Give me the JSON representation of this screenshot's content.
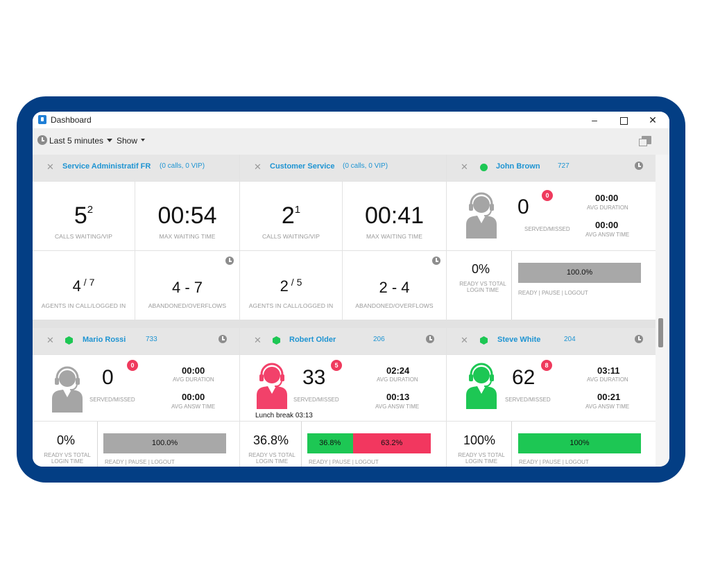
{
  "window": {
    "title": "Dashboard",
    "minimize": "–",
    "close": "✕"
  },
  "toolbar": {
    "time_filter": "Last 5 minutes",
    "show_label": "Show"
  },
  "queues": [
    {
      "name": "Service Administratif FR",
      "info": "(0 calls, 0 VIP)",
      "calls_waiting": "5",
      "calls_vip": "2",
      "calls_label": "CALLS WAITING/VIP",
      "max_wait": "00:54",
      "max_wait_label": "MAX WAITING TIME",
      "agents_in_call": "4",
      "agents_logged_in": "7",
      "agents_label": "AGENTS IN CALL/LOGGED IN",
      "abandoned": "4 - 7",
      "abandoned_label": "ABANDONED/OVERFLOWS"
    },
    {
      "name": "Customer Service",
      "info": "(0 calls, 0 VIP)",
      "calls_waiting": "2",
      "calls_vip": "1",
      "calls_label": "CALLS WAITING/VIP",
      "max_wait": "00:41",
      "max_wait_label": "MAX WAITING TIME",
      "agents_in_call": "2",
      "agents_logged_in": "5",
      "agents_label": "AGENTS IN CALL/LOGGED IN",
      "abandoned": "2 - 4",
      "abandoned_label": "ABANDONED/OVERFLOWS"
    }
  ],
  "agents": [
    {
      "name": "John Brown",
      "ext": "727",
      "status_color": "#1dc754",
      "figure_color": "#a5a5a5",
      "served": "0",
      "missed": "0",
      "served_label": "SERVED/MISSED",
      "avg_duration": "00:00",
      "avg_duration_label": "AVG DURATION",
      "avg_answ": "00:00",
      "avg_answ_label": "AVG ANSW TIME",
      "ready_pct": "0%",
      "ready_label_1": "READY VS TOTAL",
      "ready_label_2": "LOGIN TIME",
      "bar_segments": [
        {
          "label": "100.0%",
          "share": 1.0,
          "color": "#a8a8a8"
        }
      ],
      "bar_label": "READY | PAUSE | LOGOUT"
    },
    {
      "name": "Mario Rossi",
      "ext": "733",
      "status_color": "#1dc754",
      "figure_color": "#a5a5a5",
      "served": "0",
      "missed": "0",
      "served_label": "SERVED/MISSED",
      "avg_duration": "00:00",
      "avg_duration_label": "AVG DURATION",
      "avg_answ": "00:00",
      "avg_answ_label": "AVG ANSW TIME",
      "ready_pct": "0%",
      "ready_label_1": "READY VS TOTAL",
      "ready_label_2": "LOGIN TIME",
      "bar_segments": [
        {
          "label": "100.0%",
          "share": 1.0,
          "color": "#a8a8a8"
        }
      ],
      "bar_label": "READY | PAUSE | LOGOUT"
    },
    {
      "name": "Robert Older",
      "ext": "206",
      "status_color": "#1dc754",
      "figure_color": "#f2416a",
      "served": "33",
      "missed": "5",
      "served_label": "SERVED/MISSED",
      "avg_duration": "02:24",
      "avg_duration_label": "AVG DURATION",
      "avg_answ": "00:13",
      "avg_answ_label": "AVG ANSW TIME",
      "status_note": "Lunch break 03:13",
      "ready_pct": "36.8%",
      "ready_label_1": "READY VS TOTAL",
      "ready_label_2": "LOGIN TIME",
      "bar_segments": [
        {
          "label": "36.8%",
          "share": 0.368,
          "color": "#1dc754"
        },
        {
          "label": "63.2%",
          "share": 0.632,
          "color": "#f2375f"
        }
      ],
      "bar_label": "READY | PAUSE | LOGOUT"
    },
    {
      "name": "Steve White",
      "ext": "204",
      "status_color": "#1dc754",
      "figure_color": "#1dc754",
      "served": "62",
      "missed": "8",
      "served_label": "SERVED/MISSED",
      "avg_duration": "03:11",
      "avg_duration_label": "AVG DURATION",
      "avg_answ": "00:21",
      "avg_answ_label": "AVG ANSW TIME",
      "ready_pct": "100%",
      "ready_label_1": "READY VS TOTAL",
      "ready_label_2": "LOGIN TIME",
      "bar_segments": [
        {
          "label": "100%",
          "share": 1.0,
          "color": "#1dc754"
        }
      ],
      "bar_label": "READY | PAUSE | LOGOUT"
    }
  ]
}
